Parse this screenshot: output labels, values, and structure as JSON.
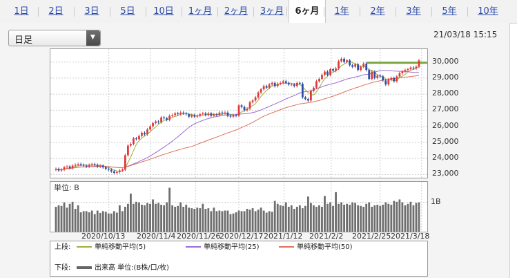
{
  "tabs": [
    {
      "label": "1日",
      "active": false
    },
    {
      "label": "2日",
      "active": false
    },
    {
      "label": "3日",
      "active": false
    },
    {
      "label": "5日",
      "active": false
    },
    {
      "label": "10日",
      "active": false
    },
    {
      "label": "1ヶ月",
      "active": false
    },
    {
      "label": "2ヶ月",
      "active": false
    },
    {
      "label": "3ヶ月",
      "active": false
    },
    {
      "label": "6ヶ月",
      "active": true
    },
    {
      "label": "1年",
      "active": false
    },
    {
      "label": "2年",
      "active": false
    },
    {
      "label": "3年",
      "active": false
    },
    {
      "label": "5年",
      "active": false
    },
    {
      "label": "10年",
      "active": false
    }
  ],
  "period_select": {
    "value": "日足"
  },
  "timestamp": "21/03/18 15:15",
  "chart_data": {
    "type": "candlestick",
    "y_ticks": [
      {
        "value": 30000,
        "label": "30,000"
      },
      {
        "value": 29000,
        "label": "29,000"
      },
      {
        "value": 28000,
        "label": "28,000"
      },
      {
        "value": 27000,
        "label": "27,000"
      },
      {
        "value": 26000,
        "label": "26,000"
      },
      {
        "value": 25000,
        "label": "25,000"
      },
      {
        "value": 24000,
        "label": "24,000"
      },
      {
        "value": 23000,
        "label": "23,000"
      }
    ],
    "ylim": [
      22800,
      30800
    ],
    "x_labels": [
      "2020/10/13",
      "2020/11/4",
      "2020/11/26",
      "2020/12/17",
      "2021/1/12",
      "2021/2/2",
      "2021/2/25",
      "2021/3/18"
    ],
    "closes": [
      23350,
      23250,
      23300,
      23450,
      23500,
      23400,
      23550,
      23600,
      23650,
      23600,
      23550,
      23500,
      23600,
      23650,
      23600,
      23500,
      23550,
      23450,
      23350,
      23300,
      23200,
      23100,
      23150,
      23250,
      23300,
      24200,
      24800,
      24900,
      25250,
      25200,
      25400,
      25600,
      25500,
      25800,
      26000,
      26200,
      26300,
      26250,
      26550,
      26500,
      26400,
      26650,
      26700,
      26800,
      26750,
      26850,
      26800,
      26750,
      26600,
      26700,
      26600,
      26650,
      26750,
      26800,
      26700,
      26800,
      26650,
      26750,
      26700,
      26850,
      26800,
      26850,
      26650,
      26600,
      26700,
      26650,
      27300,
      27200,
      27000,
      27100,
      27500,
      27600,
      27800,
      28100,
      28300,
      28500,
      28400,
      28600,
      28700,
      28500,
      28650,
      28700,
      28800,
      28700,
      28600,
      28600,
      28500,
      28700,
      28650,
      27800,
      27700,
      27600,
      28200,
      28400,
      28800,
      28950,
      29200,
      29400,
      29200,
      29550,
      29450,
      29600,
      30050,
      30200,
      30000,
      30100,
      29800,
      29700,
      29850,
      29500,
      29700,
      29900,
      29500,
      28950,
      29400,
      29000,
      29150,
      29100,
      28850,
      28600,
      28900,
      29000,
      28800,
      29100,
      29300,
      29400,
      29500,
      29550,
      29650,
      29600,
      29700,
      30100
    ],
    "series": [
      {
        "name": "単純移動平均(5)",
        "period": 5,
        "color": "#9ab33c"
      },
      {
        "name": "単純移動平均(25)",
        "period": 25,
        "color": "#9b6bd1"
      },
      {
        "name": "単純移動平均(50)",
        "period": 50,
        "color": "#e0705a"
      }
    ],
    "reference_line": {
      "value": 29950,
      "color": "#7aa63f"
    },
    "up_color": "#e03b3b",
    "down_color": "#2b4fa8",
    "volume": {
      "unit_label": "単位: B",
      "tick_label": "1B",
      "tick_value": 1.0,
      "ymax": 1.7,
      "values": [
        0.85,
        0.9,
        0.88,
        1.0,
        0.82,
        0.95,
        1.02,
        0.78,
        0.9,
        0.66,
        0.7,
        0.7,
        0.66,
        0.72,
        0.6,
        0.72,
        0.64,
        0.7,
        0.68,
        0.62,
        0.62,
        0.7,
        0.65,
        0.9,
        0.7,
        0.85,
        0.95,
        1.3,
        0.95,
        1.02,
        1.0,
        0.92,
        0.9,
        0.98,
        0.95,
        1.1,
        0.95,
        0.98,
        0.92,
        0.9,
        1.0,
        1.5,
        0.9,
        0.85,
        0.88,
        1.0,
        0.85,
        0.92,
        0.82,
        0.8,
        0.78,
        0.82,
        0.8,
        0.95,
        0.78,
        0.8,
        0.7,
        0.82,
        0.7,
        0.72,
        0.7,
        0.72,
        0.72,
        0.6,
        0.62,
        0.66,
        0.72,
        0.7,
        0.7,
        0.78,
        0.75,
        0.8,
        0.7,
        0.75,
        0.82,
        0.72,
        0.65,
        0.7,
        0.68,
        1.05,
        0.95,
        0.9,
        0.88,
        1.0,
        0.85,
        0.9,
        0.78,
        0.85,
        0.9,
        0.8,
        0.88,
        1.2,
        0.98,
        0.9,
        0.85,
        0.9,
        0.85,
        1.22,
        0.95,
        1.0,
        0.88,
        1.35,
        0.95,
        1.0,
        0.92,
        0.95,
        0.92,
        1.0,
        0.98,
        0.9,
        0.88,
        0.85,
        0.95,
        1.0,
        0.85,
        0.9,
        0.92,
        0.88,
        0.92,
        1.0,
        0.95,
        0.92,
        1.05,
        1.02,
        1.1,
        1.0,
        0.9,
        0.95,
        1.02,
        0.9,
        0.98,
        1.0
      ]
    }
  },
  "legend": {
    "upper_label": "上段:",
    "lower_label": "下段:",
    "ma5": "単純移動平均(5)",
    "ma25": "単純移動平均(25)",
    "ma50": "単純移動平均(50)",
    "volume": "出来高 単位:(B株/口/枚)"
  }
}
